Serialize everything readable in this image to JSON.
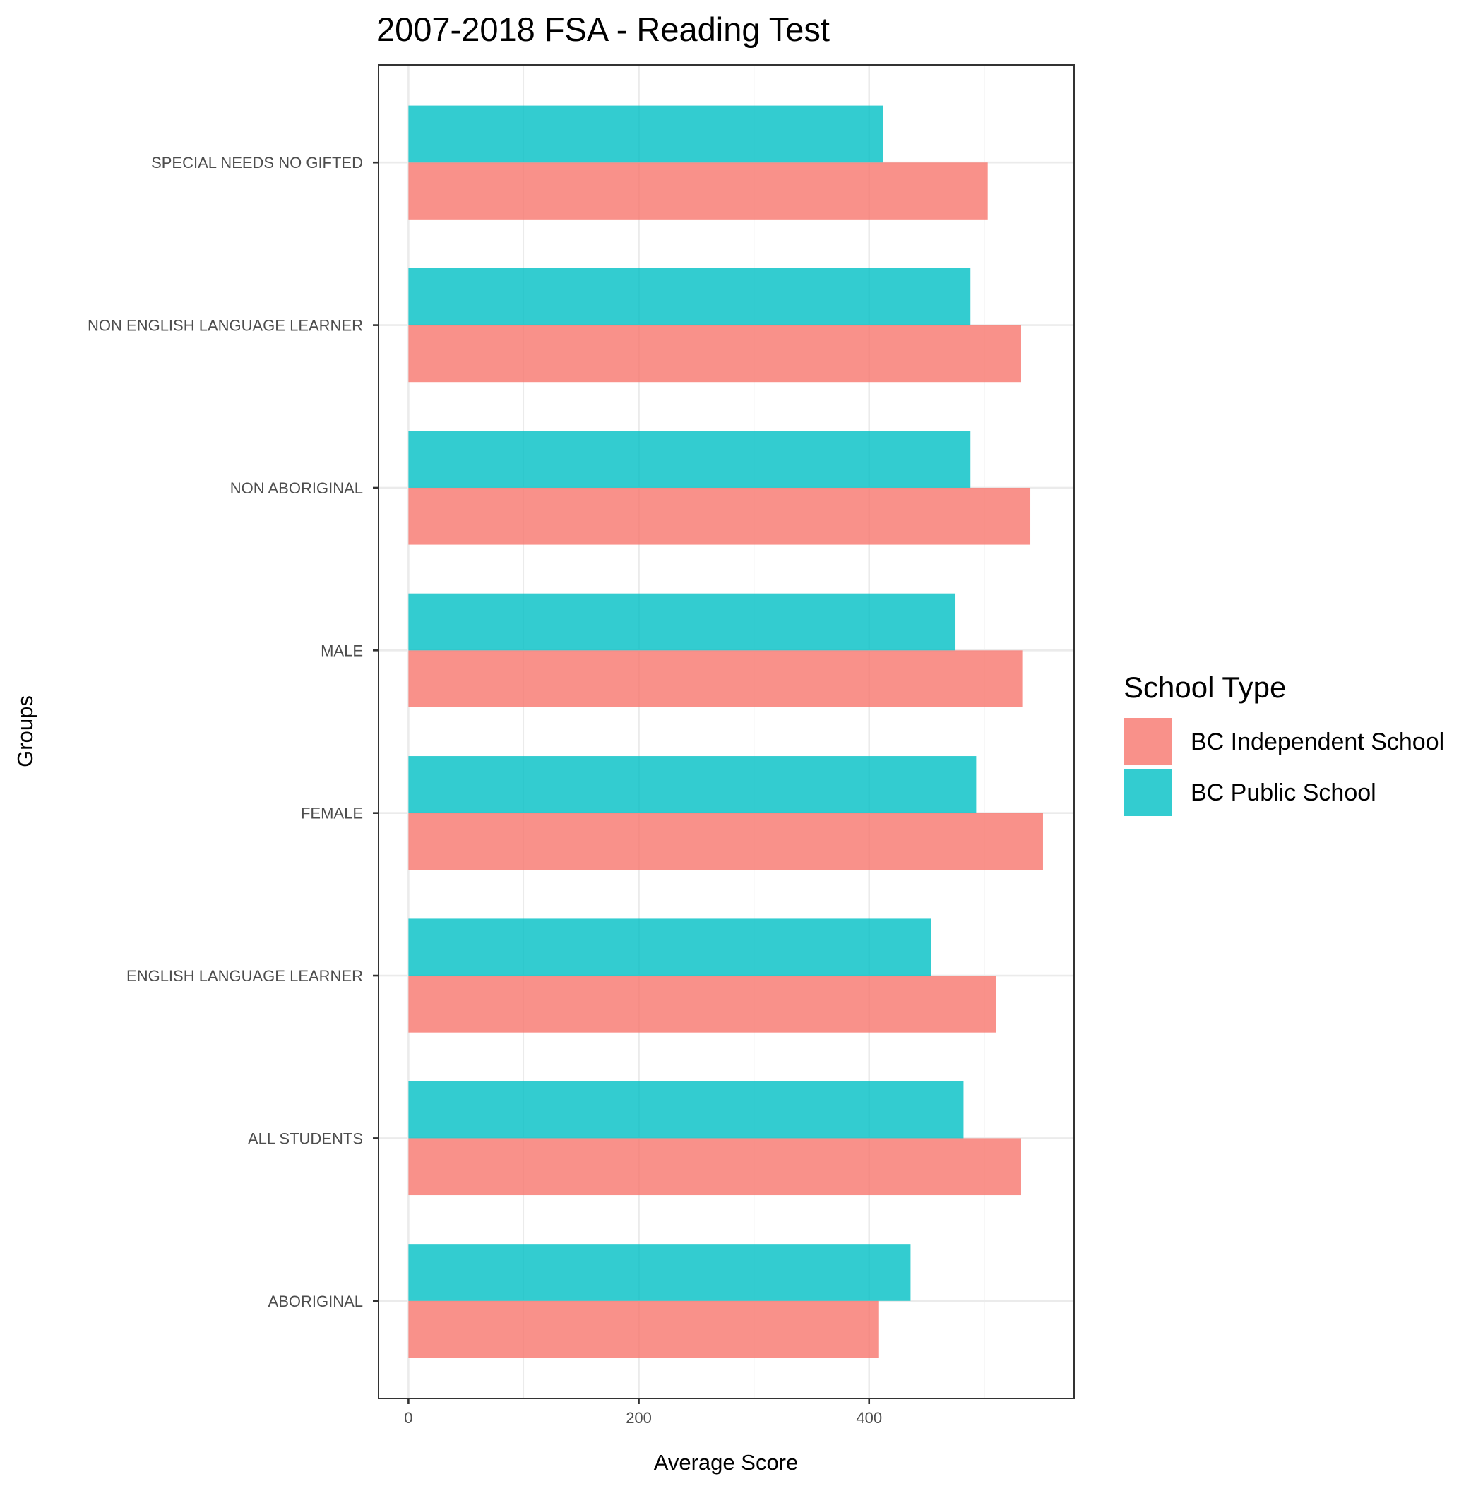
{
  "chart_data": {
    "type": "bar",
    "orientation": "horizontal",
    "title": "2007-2018 FSA - Reading Test",
    "xlabel": "Average Score",
    "ylabel": "Groups",
    "xlim": [
      -26,
      578
    ],
    "xticks": [
      "0",
      "200",
      "400"
    ],
    "xtick_values": [
      0,
      200,
      400
    ],
    "grid": true,
    "categories": [
      "ABORIGINAL",
      "ALL STUDENTS",
      "ENGLISH LANGUAGE LEARNER",
      "FEMALE",
      "MALE",
      "NON ABORIGINAL",
      "NON ENGLISH LANGUAGE LEARNER",
      "SPECIAL NEEDS NO GIFTED"
    ],
    "series": [
      {
        "name": "BC Independent School",
        "color": "#F8766D",
        "values": [
          408,
          532,
          510,
          551,
          533,
          540,
          532,
          503
        ]
      },
      {
        "name": "BC Public School",
        "color": "#00BFC4",
        "values": [
          436,
          482,
          454,
          493,
          475,
          488,
          488,
          412
        ]
      }
    ],
    "legend": {
      "title": "School Type",
      "position": "right"
    }
  }
}
